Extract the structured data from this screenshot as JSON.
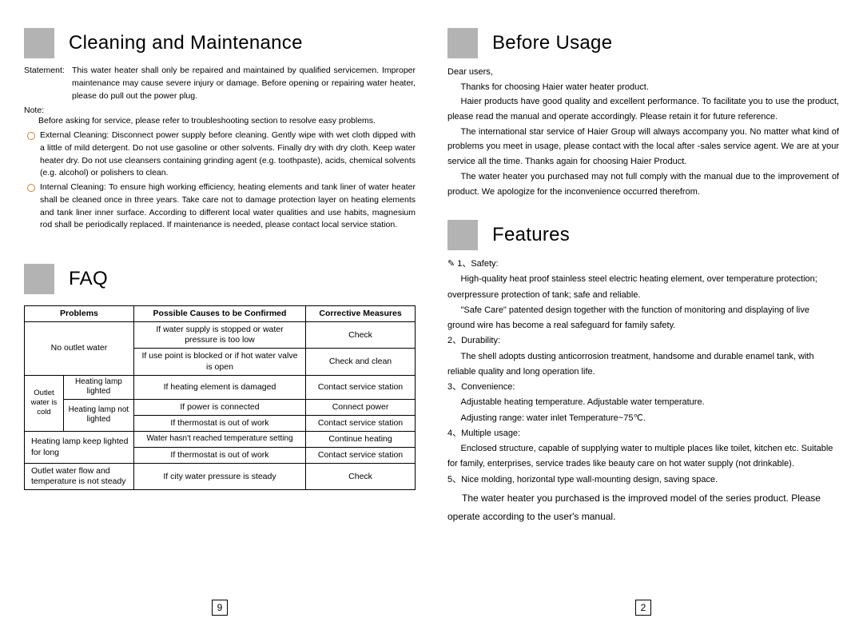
{
  "left": {
    "cleaning_title": "Cleaning and Maintenance",
    "stmt_label": "Statement:",
    "stmt_body": "This water heater shall only be repaired and maintained by qualified servicemen. Improper maintenance may cause severe injury or damage. Before opening or repairing water heater, please do pull out the power plug.",
    "note_label": "Note:",
    "note_body": "Before asking for service, please refer to troubleshooting section to resolve easy problems.",
    "b1": "External Cleaning: Disconnect power supply before cleaning. Gently wipe with wet cloth dipped with a little of mild detergent. Do not use gasoline or other solvents. Finally dry with dry cloth. Keep water heater dry. Do not use cleansers containing grinding agent (e.g. toothpaste), acids, chemical solvents (e.g. alcohol) or polishers to clean.",
    "b2": "Internal Cleaning: To ensure high working efficiency, heating elements and tank liner of water heater shall be cleaned once in three years. Take care not to damage protection layer on heating elements and tank liner inner surface. According to different local water qualities and use habits, magnesium rod shall be periodically replaced. If maintenance is needed, please contact local service station.",
    "faq_title": "FAQ",
    "table": {
      "h1": "Problems",
      "h2": "Possible Causes to be Confirmed",
      "h3": "Corrective Measures",
      "r1": {
        "p": "No outlet water",
        "c1": "If water supply is stopped or water pressure is too low",
        "m1": "Check",
        "c2": "If use point is blocked or if hot water valve is open",
        "m2": "Check and clean"
      },
      "r2": {
        "pL": "Outlet water is cold",
        "s1": "Heating lamp lighted",
        "c1": "If heating element is damaged",
        "m1": "Contact service station",
        "s2": "Heating lamp not lighted",
        "c2": "If power is connected",
        "m2": "Connect power",
        "c3": "If thermostat is out of work",
        "m3": "Contact service station"
      },
      "r3": {
        "p": "Heating lamp keep lighted for long",
        "c1": "Water hasn't reached temperature setting",
        "m1": "Continue heating",
        "c2": "If thermostat is out of work",
        "m2": "Contact service station"
      },
      "r4": {
        "p": "Outlet water flow and temperature is not steady",
        "c1": "If city water pressure is steady",
        "m1": "Check"
      }
    },
    "page": "9"
  },
  "right": {
    "before_title": "Before Usage",
    "p1": "Dear users,",
    "p2": "Thanks for choosing Haier water heater product.",
    "p3": "Haier products have good quality and excellent performance. To facilitate you to use the product, please read the manual and operate accordingly. Please retain it for future reference.",
    "p4": "The international star service of Haier Group will always accompany you. No matter what kind of problems you meet in usage, please contact with the local after -sales service agent. We are at your service all the time. Thanks again for choosing Haier Product.",
    "p5": "The water heater you purchased may not full comply with the manual due to the improvement of product. We apologize for the inconvenience occurred therefrom.",
    "features_title": "Features",
    "f1": "1、Safety:",
    "f1a": "High-quality heat proof stainless steel electric heating element, over temperature protection; overpressure protection of tank; safe and reliable.",
    "f1b": "\"Safe Care\" patented design together with the function of monitoring and displaying of  live ground wire has become a real safeguard for family safety.",
    "f2": "2、Durability:",
    "f2a": "The shell adopts dusting anticorrosion treatment, handsome and durable enamel tank, with reliable quality and long operation life.",
    "f3": "3、Convenience:",
    "f3a": "Adjustable heating temperature. Adjustable water temperature.",
    "f3b": "Adjusting range: water inlet Temperature~75℃.",
    "f4": "4、Multiple usage:",
    "f4a": "Enclosed structure, capable of supplying water to multiple places like toilet,   kitchen etc. Suitable for family, enterprises, service trades like beauty care on hot water supply (not drinkable).",
    "f5": "5、Nice molding, horizontal type wall-mounting design, saving space.",
    "final": "The water heater you purchased is the improved model of the series product. Please operate according to the user's manual.",
    "page": "2"
  },
  "colors": {
    "box": "#b3b3b3",
    "bullet": "#d08030"
  }
}
